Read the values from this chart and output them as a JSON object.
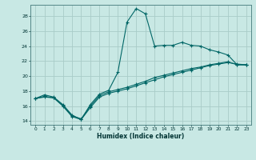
{
  "xlabel": "Humidex (Indice chaleur)",
  "ylabel": "",
  "background_color": "#c8e8e4",
  "grid_color": "#a8ccc8",
  "line_color": "#006666",
  "xlim": [
    -0.5,
    23.5
  ],
  "ylim": [
    13.5,
    29.5
  ],
  "xticks": [
    0,
    1,
    2,
    3,
    4,
    5,
    6,
    7,
    8,
    9,
    10,
    11,
    12,
    13,
    14,
    15,
    16,
    17,
    18,
    19,
    20,
    21,
    22,
    23
  ],
  "yticks": [
    14,
    16,
    18,
    20,
    22,
    24,
    26,
    28
  ],
  "curve1_x": [
    0,
    1,
    2,
    3,
    4,
    5,
    6,
    7,
    8,
    9,
    10,
    11,
    12,
    13,
    14,
    15,
    16,
    17,
    18,
    19,
    20,
    21,
    22,
    23
  ],
  "curve1_y": [
    17.0,
    17.5,
    17.2,
    16.2,
    14.8,
    14.2,
    16.2,
    17.6,
    18.1,
    20.5,
    27.2,
    29.0,
    28.3,
    24.0,
    24.1,
    24.1,
    24.5,
    24.1,
    24.0,
    23.5,
    23.2,
    22.8,
    21.5,
    21.5
  ],
  "curve2_x": [
    0,
    1,
    2,
    3,
    4,
    5,
    6,
    7,
    8,
    9,
    10,
    11,
    12,
    13,
    14,
    15,
    16,
    17,
    18,
    19,
    20,
    21,
    22,
    23
  ],
  "curve2_y": [
    17.0,
    17.3,
    17.1,
    16.0,
    14.6,
    14.2,
    15.8,
    17.2,
    17.7,
    18.0,
    18.3,
    18.7,
    19.1,
    19.5,
    19.9,
    20.2,
    20.5,
    20.8,
    21.1,
    21.4,
    21.6,
    21.8,
    21.6,
    21.5
  ],
  "curve3_x": [
    0,
    1,
    2,
    3,
    4,
    5,
    6,
    7,
    8,
    9,
    10,
    11,
    12,
    13,
    14,
    15,
    16,
    17,
    18,
    19,
    20,
    21,
    22,
    23
  ],
  "curve3_y": [
    17.0,
    17.2,
    17.1,
    16.1,
    14.7,
    14.3,
    16.0,
    17.4,
    17.9,
    18.2,
    18.5,
    18.9,
    19.3,
    19.8,
    20.1,
    20.4,
    20.7,
    21.0,
    21.2,
    21.5,
    21.7,
    21.9,
    21.5,
    21.5
  ]
}
